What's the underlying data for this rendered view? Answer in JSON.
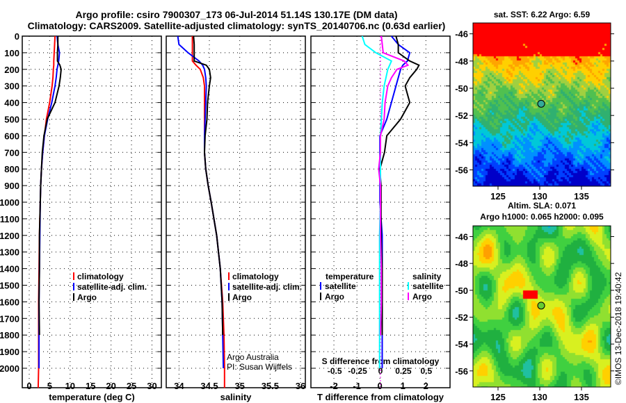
{
  "title_line1": "Argo profile: csiro 7900307_173 06-Jul-2014 51.14S 130.17E (DM data)",
  "title_line2": "Climatology: CARS2009. Satellite-adjusted climatology: synTS_20140706.nc (0.63d earlier)",
  "credit_line1": "Argo Australia",
  "credit_line2": "PI: Susan Wijffels",
  "timestamp": "©IMOS 13-Dec-2018 19:40:42",
  "colors": {
    "climatology": "#ff0000",
    "satellite": "#0000ff",
    "argo": "#000000",
    "sal_satellite": "#00ffff",
    "sal_argo": "#ff00ff"
  },
  "chart_data": [
    {
      "type": "line",
      "name": "temperature",
      "xlabel": "temperature (deg C)",
      "ylabel": "depth",
      "xlim": [
        -1.7,
        32.3
      ],
      "ylim": [
        2118,
        0
      ],
      "xticks": [
        "0",
        "5",
        "10",
        "15",
        "20",
        "25",
        "30"
      ],
      "yticks": [
        "0",
        "100",
        "200",
        "300",
        "400",
        "500",
        "600",
        "700",
        "800",
        "900",
        "1000",
        "1100",
        "1200",
        "1300",
        "1400",
        "1500",
        "1600",
        "1700",
        "1800",
        "1900",
        "2000"
      ],
      "legend": [
        "climatology",
        "satellite-adj. clim.",
        "Argo"
      ],
      "depth": [
        0,
        50,
        100,
        150,
        175,
        200,
        250,
        300,
        400,
        500,
        600,
        700,
        800,
        900,
        1000,
        1200,
        1400,
        1600,
        1800,
        2000,
        2118
      ],
      "series": [
        {
          "name": "climatology",
          "values": [
            6.3,
            6.2,
            6.1,
            6.0,
            6.0,
            5.9,
            5.8,
            5.6,
            5.0,
            4.2,
            3.7,
            3.3,
            3.0,
            2.8,
            2.7,
            2.5,
            2.4,
            2.3,
            2.3,
            2.3,
            2.2
          ]
        },
        {
          "name": "satellite-adj. clim.",
          "values": [
            6.8,
            7.0,
            7.4,
            7.2,
            7.0,
            6.8,
            6.6,
            6.3,
            5.5,
            4.5,
            3.7,
            3.3,
            3.0,
            2.8,
            2.7,
            2.6,
            2.5,
            2.4,
            2.4,
            2.4,
            null
          ]
        },
        {
          "name": "Argo",
          "values": [
            7.0,
            7.0,
            6.9,
            6.9,
            7.5,
            7.8,
            7.6,
            7.3,
            6.3,
            4.4,
            3.6,
            3.2,
            3.0,
            2.8,
            2.7,
            2.5,
            2.5,
            2.4,
            2.5,
            null,
            null
          ]
        }
      ]
    },
    {
      "type": "line",
      "name": "salinity",
      "xlabel": "salinity",
      "xlim": [
        33.79,
        36.08
      ],
      "ylim": [
        2118,
        0
      ],
      "xticks": [
        "34",
        "34.5",
        "35",
        "35.5",
        "36"
      ],
      "legend": [
        "climatology",
        "satellite-adj. clim.",
        "Argo"
      ],
      "depth": [
        0,
        50,
        100,
        150,
        175,
        200,
        250,
        300,
        400,
        500,
        600,
        700,
        800,
        900,
        1000,
        1200,
        1400,
        1600,
        1800,
        2000,
        2118
      ],
      "series": [
        {
          "name": "climatology",
          "values": [
            34.22,
            34.22,
            34.22,
            34.22,
            34.28,
            34.35,
            34.4,
            34.42,
            34.42,
            34.42,
            34.42,
            34.42,
            34.44,
            34.48,
            34.53,
            34.62,
            34.68,
            34.72,
            34.74,
            34.75,
            34.75
          ]
        },
        {
          "name": "satellite-adj. clim.",
          "values": [
            33.98,
            34.0,
            34.15,
            34.33,
            34.39,
            34.42,
            34.44,
            34.45,
            34.44,
            34.43,
            34.42,
            34.42,
            34.44,
            34.48,
            34.53,
            34.62,
            34.68,
            34.71,
            34.72,
            34.73,
            null
          ]
        },
        {
          "name": "Argo",
          "values": [
            34.24,
            34.25,
            34.25,
            34.25,
            34.45,
            34.5,
            34.52,
            34.5,
            34.47,
            34.46,
            34.43,
            34.42,
            34.44,
            34.48,
            34.53,
            34.62,
            34.68,
            34.71,
            34.72,
            null,
            null
          ]
        }
      ]
    },
    {
      "type": "line",
      "name": "difference",
      "xlabel": "T difference from climatology",
      "x2label": "S difference from climatology",
      "xlim": [
        -3.0,
        3.05
      ],
      "x2lim": [
        -0.76,
        0.76
      ],
      "ylim": [
        2118,
        0
      ],
      "xticks": [
        "-2",
        "-1",
        "0",
        "1",
        "2"
      ],
      "x2ticks": [
        "-0.5",
        "-0.25",
        "0",
        "0.25",
        "0.5"
      ],
      "legend_title_t": "temperature",
      "legend_title_s": "salinity",
      "legend_t": [
        "satellite",
        "Argo"
      ],
      "legend_s": [
        "satellite",
        "Argo"
      ],
      "depth": [
        0,
        50,
        100,
        150,
        175,
        200,
        250,
        300,
        400,
        500,
        600,
        700,
        800,
        900,
        1000,
        1200,
        1400,
        1600,
        1800,
        2000
      ],
      "series": [
        {
          "name": "T satellite",
          "axis": "T",
          "values": [
            0.5,
            0.8,
            1.3,
            1.2,
            1.0,
            0.9,
            0.8,
            0.7,
            0.5,
            0.3,
            0.0,
            0.0,
            0.0,
            0.0,
            0.0,
            0.1,
            0.1,
            0.1,
            0.1,
            0.1
          ]
        },
        {
          "name": "T Argo",
          "axis": "T",
          "values": [
            0.7,
            0.8,
            0.8,
            1.3,
            1.7,
            1.6,
            1.3,
            1.1,
            1.3,
            0.9,
            0.3,
            0.2,
            0.0,
            0.05,
            0.05,
            0.05,
            0.1,
            0.1,
            0.1,
            null
          ]
        },
        {
          "name": "S satellite",
          "axis": "S",
          "values": [
            -0.2,
            -0.17,
            -0.05,
            0.12,
            0.1,
            0.08,
            0.06,
            0.04,
            0.02,
            0.01,
            0.0,
            0.0,
            0.0,
            0.0,
            0.0,
            -0.01,
            -0.01,
            -0.01,
            -0.01,
            -0.01
          ]
        },
        {
          "name": "S Argo",
          "axis": "S",
          "values": [
            0.01,
            0.02,
            0.03,
            0.26,
            0.3,
            0.18,
            0.12,
            0.08,
            0.05,
            0.04,
            0.0,
            0.0,
            -0.02,
            0.0,
            0.0,
            0.0,
            0.01,
            0.01,
            0.0,
            null
          ]
        }
      ]
    },
    {
      "type": "heatmap",
      "name": "sst-map",
      "title": "sat. SST: 6.22 Argo: 6.59",
      "xticks": [
        "125",
        "130",
        "135"
      ],
      "yticks": [
        "-46",
        "-48",
        "-50",
        "-52",
        "-54",
        "-56"
      ],
      "xlim": [
        122,
        138.5
      ],
      "ylim": [
        -57.2,
        -45.2
      ],
      "marker": {
        "lon": 130.17,
        "lat": -51.14
      }
    },
    {
      "type": "heatmap",
      "name": "sla-map",
      "title": "Altim. SLA: 0.071",
      "subtitle": "Argo h1000: 0.065 h2000: 0.095",
      "xticks": [
        "125",
        "130",
        "135"
      ],
      "yticks": [
        "-46",
        "-48",
        "-50",
        "-52",
        "-54",
        "-56"
      ],
      "xlim": [
        122,
        138.5
      ],
      "ylim": [
        -57.2,
        -45.2
      ],
      "marker": {
        "lon": 130.17,
        "lat": -51.14
      }
    }
  ]
}
